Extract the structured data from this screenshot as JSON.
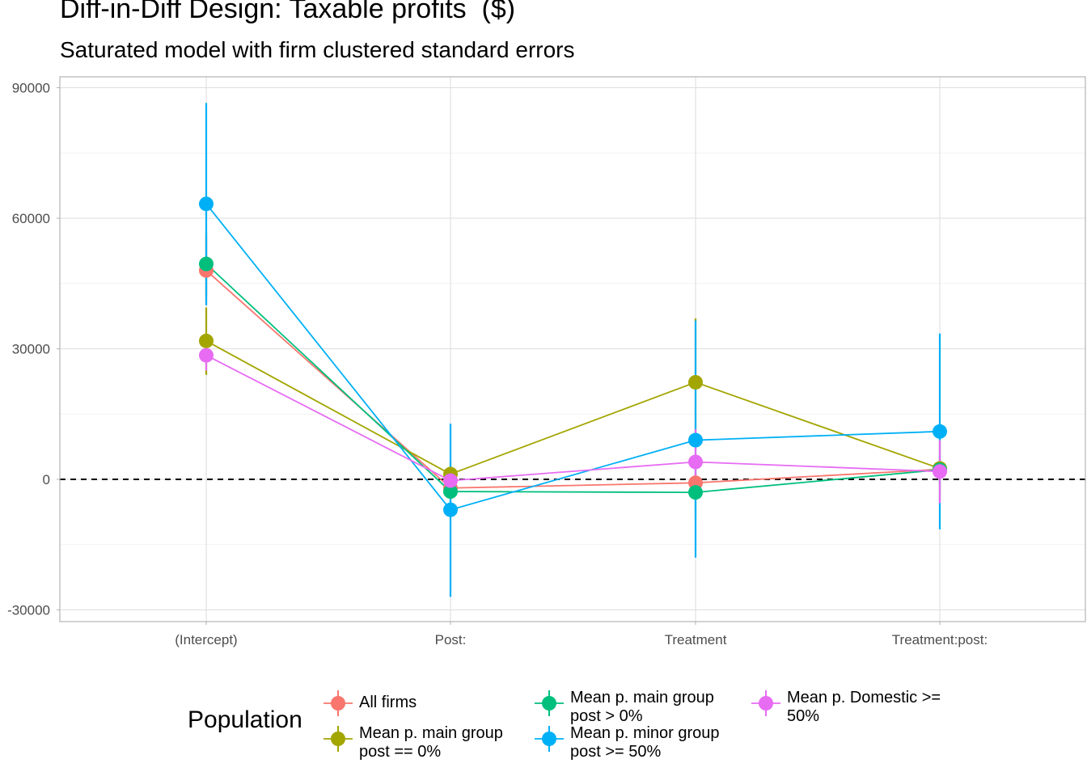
{
  "chart_data": {
    "type": "line",
    "title": "Diff-in-Diff Design: Taxable profits  ($)",
    "subtitle": "Saturated model with firm clustered standard errors",
    "categories": [
      "(Intercept)",
      "Post:",
      "Treatment",
      "Treatment:post:"
    ],
    "ylim": [
      -35000,
      92000
    ],
    "yticks": [
      -30000,
      0,
      30000,
      60000,
      90000
    ],
    "reference_line": 0,
    "grid": true,
    "legend": {
      "title": "Population",
      "position": "bottom"
    },
    "series": [
      {
        "name": "All firms",
        "color": "#F8766D",
        "values": [
          48000,
          -2000,
          -800,
          2300
        ],
        "lower": [
          40000,
          -4000,
          -3000,
          300
        ],
        "upper": [
          56000,
          0,
          1500,
          4300
        ]
      },
      {
        "name": "Mean p. main group post == 0%",
        "color": "#A3A500",
        "values": [
          31800,
          1200,
          22300,
          2500
        ],
        "lower": [
          24000,
          -1500,
          8000,
          -5000
        ],
        "upper": [
          39500,
          4000,
          37000,
          10000
        ]
      },
      {
        "name": "Mean p. main group post > 0%",
        "color": "#00BF7D",
        "values": [
          49500,
          -2800,
          -3000,
          2200
        ],
        "lower": [
          42000,
          -5500,
          -9000,
          -1000
        ],
        "upper": [
          57000,
          0,
          3000,
          5500
        ]
      },
      {
        "name": "Mean p. minor group post >= 50%",
        "color": "#00B0F6",
        "values": [
          63300,
          -7000,
          9000,
          11000
        ],
        "lower": [
          40000,
          -27000,
          -18000,
          -11500
        ],
        "upper": [
          86500,
          12800,
          36500,
          33500
        ]
      },
      {
        "name": "Mean p. Domestic >= 50%",
        "color": "#E76BF3",
        "values": [
          28500,
          -300,
          4000,
          1800
        ],
        "lower": [
          25000,
          -2000,
          -3500,
          -5500
        ],
        "upper": [
          32000,
          1500,
          11500,
          9000
        ]
      }
    ]
  }
}
